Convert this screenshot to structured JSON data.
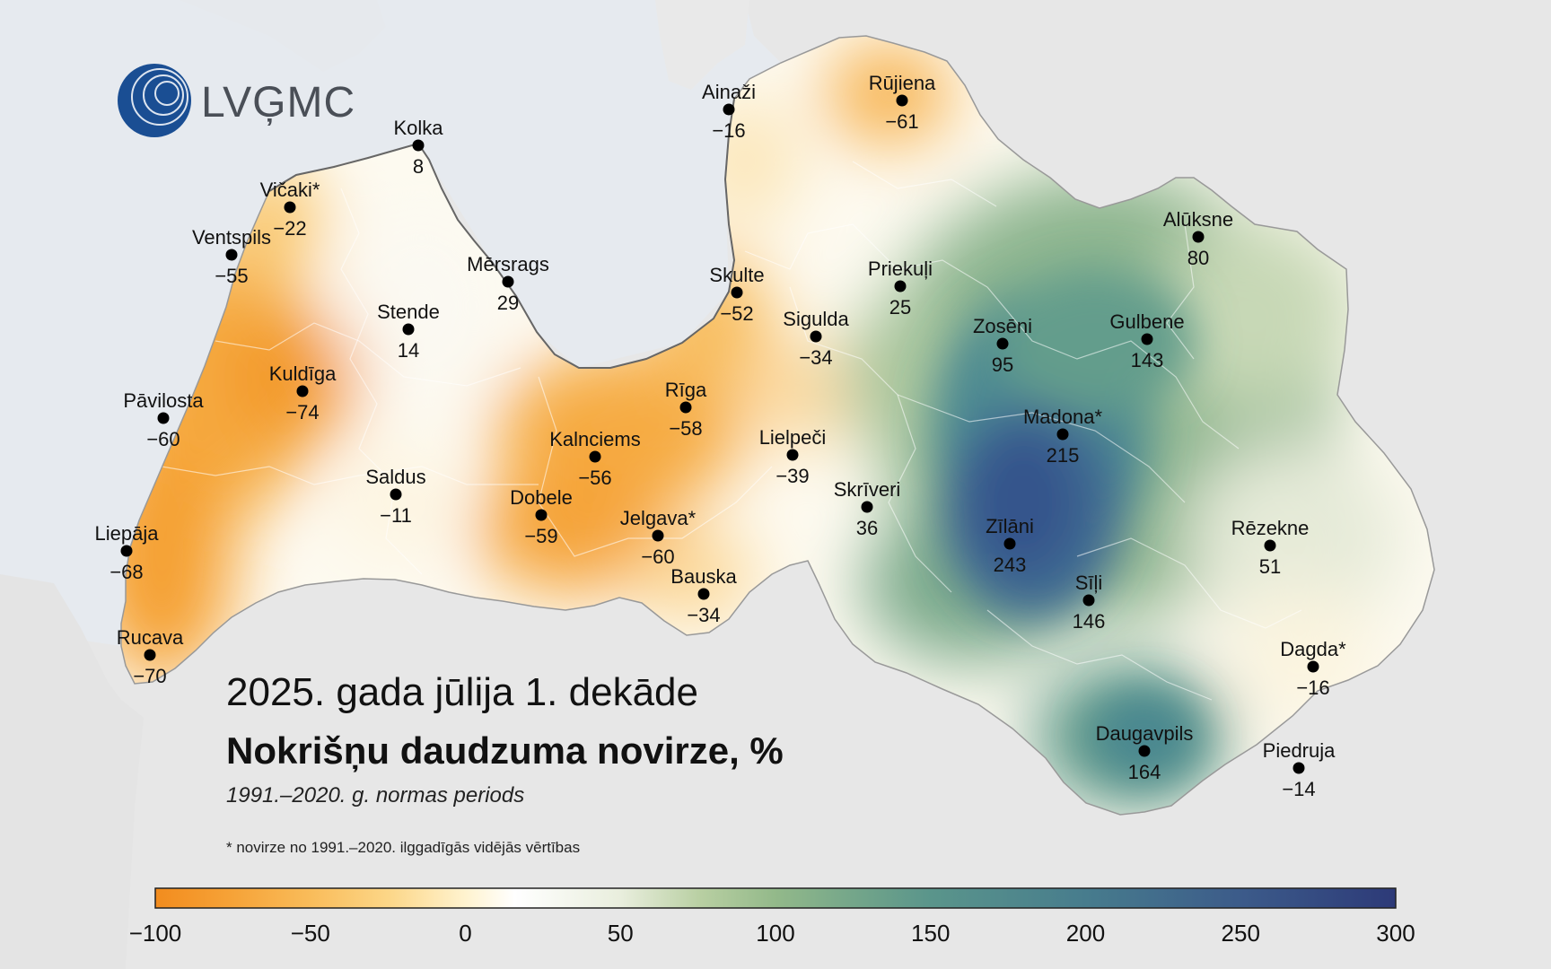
{
  "logo": {
    "text": "LVĢMC"
  },
  "title": {
    "period": "2025. gada jūlija 1. dekāde",
    "main": "Nokrišņu daudzuma novirze, %",
    "normal": "1991.–2020. g. normas periods",
    "footnote": "* novirze no 1991.–2020. ilggadīgās vidējās vērtības"
  },
  "legend": {
    "ticks": [
      "−100",
      "−50",
      "0",
      "50",
      "100",
      "150",
      "200",
      "250",
      "300"
    ],
    "min": -100,
    "max": 300
  },
  "colors": {
    "orange": "#f5a030",
    "yellow": "#fde3a0",
    "white": "#fcfbf6",
    "light_green": "#cdddb8",
    "green": "#6aa58a",
    "teal": "#4c8792",
    "blue": "#3b5590",
    "navy": "#2f3f7a",
    "sea": "#e6eaef",
    "land_outside": "#e8e8e8"
  },
  "stations": [
    {
      "name": "Kolka",
      "value": "8"
    },
    {
      "name": "Ainaži",
      "value": "−16"
    },
    {
      "name": "Rūjiena",
      "value": "−61"
    },
    {
      "name": "Vičaki*",
      "value": "−22"
    },
    {
      "name": "Ventspils",
      "value": "−55"
    },
    {
      "name": "Mērsrags",
      "value": "29"
    },
    {
      "name": "Skulte",
      "value": "−52"
    },
    {
      "name": "Priekuļi",
      "value": "25"
    },
    {
      "name": "Alūksne",
      "value": "80"
    },
    {
      "name": "Stende",
      "value": "14"
    },
    {
      "name": "Sigulda",
      "value": "−34"
    },
    {
      "name": "Zosēni",
      "value": "95"
    },
    {
      "name": "Gulbene",
      "value": "143"
    },
    {
      "name": "Kuldīga",
      "value": "−74"
    },
    {
      "name": "Pāvilosta",
      "value": "−60"
    },
    {
      "name": "Rīga",
      "value": "−58"
    },
    {
      "name": "Madona*",
      "value": "215"
    },
    {
      "name": "Kalnciems",
      "value": "−56"
    },
    {
      "name": "Lielpeči",
      "value": "−39"
    },
    {
      "name": "Saldus",
      "value": "−11"
    },
    {
      "name": "Dobele",
      "value": "−59"
    },
    {
      "name": "Jelgava*",
      "value": "−60"
    },
    {
      "name": "Skrīveri",
      "value": "36"
    },
    {
      "name": "Zīlāni",
      "value": "243"
    },
    {
      "name": "Rēzekne",
      "value": "51"
    },
    {
      "name": "Liepāja",
      "value": "−68"
    },
    {
      "name": "Bauska",
      "value": "−34"
    },
    {
      "name": "Sīļi",
      "value": "146"
    },
    {
      "name": "Rucava",
      "value": "−70"
    },
    {
      "name": "Dagda*",
      "value": "−16"
    },
    {
      "name": "Daugavpils",
      "value": "164"
    },
    {
      "name": "Piedruja",
      "value": "−14"
    }
  ]
}
